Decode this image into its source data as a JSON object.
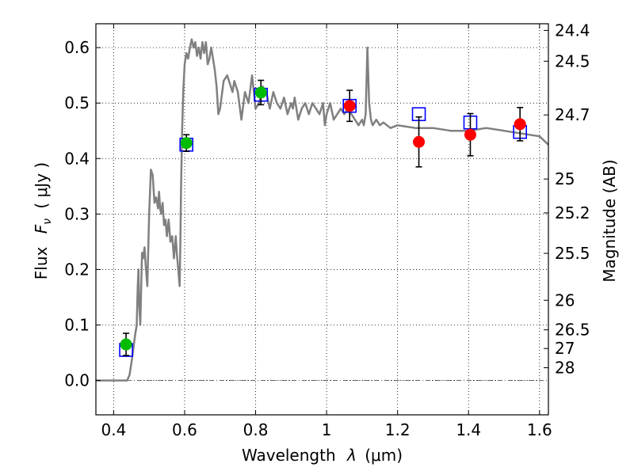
{
  "chart_data": {
    "type": "scatter",
    "xlabel": {
      "text": "Wavelength",
      "symbol": "λ",
      "unit": "(μm)"
    },
    "ylabel": {
      "text": "Flux",
      "symbol": "F",
      "subscript": "ν",
      "unit": "( μJy )"
    },
    "y2label": "Magnitude (AB)",
    "xlim": [
      0.35,
      1.625
    ],
    "ylim": [
      -0.062,
      0.643
    ],
    "grid": true,
    "x_ticks": [
      0.4,
      0.6,
      0.8,
      1.0,
      1.2,
      1.4,
      1.6
    ],
    "x_tick_labels": [
      "0.4",
      "0.6",
      "0.8",
      "1",
      "1.2",
      "1.4",
      "1.6"
    ],
    "y_ticks": [
      0.0,
      0.1,
      0.2,
      0.3,
      0.4,
      0.5,
      0.6
    ],
    "y_tick_labels": [
      "0.0",
      "0.1",
      "0.2",
      "0.3",
      "0.4",
      "0.5",
      "0.6"
    ],
    "y2_ticks": [
      {
        "label": "24.4",
        "mag": 24.4
      },
      {
        "label": "24.5",
        "mag": 24.5
      },
      {
        "label": "24.7",
        "mag": 24.7
      },
      {
        "label": "25",
        "mag": 25.0
      },
      {
        "label": "25.2",
        "mag": 25.2
      },
      {
        "label": "25.5",
        "mag": 25.5
      },
      {
        "label": "26",
        "mag": 26.0
      },
      {
        "label": "26.5",
        "mag": 26.5
      },
      {
        "label": "27",
        "mag": 27.0
      },
      {
        "label": "28",
        "mag": 28.0
      }
    ],
    "series": [
      {
        "kind": "model_spectrum",
        "color": "#808080",
        "x": [
          0.35,
          0.43,
          0.438,
          0.445,
          0.452,
          0.46,
          0.465,
          0.468,
          0.47,
          0.472,
          0.475,
          0.48,
          0.483,
          0.487,
          0.49,
          0.495,
          0.5,
          0.505,
          0.51,
          0.515,
          0.52,
          0.525,
          0.528,
          0.531,
          0.534,
          0.538,
          0.542,
          0.546,
          0.55,
          0.555,
          0.56,
          0.565,
          0.57,
          0.575,
          0.578,
          0.582,
          0.586,
          0.588,
          0.59,
          0.593,
          0.596,
          0.6,
          0.605,
          0.61,
          0.615,
          0.62,
          0.625,
          0.63,
          0.635,
          0.64,
          0.645,
          0.65,
          0.655,
          0.66,
          0.665,
          0.67,
          0.675,
          0.68,
          0.685,
          0.69,
          0.695,
          0.7,
          0.71,
          0.72,
          0.73,
          0.735,
          0.74,
          0.75,
          0.76,
          0.77,
          0.78,
          0.79,
          0.8,
          0.81,
          0.82,
          0.83,
          0.84,
          0.85,
          0.86,
          0.87,
          0.88,
          0.89,
          0.9,
          0.905,
          0.91,
          0.92,
          0.93,
          0.94,
          0.95,
          0.96,
          0.97,
          0.98,
          0.99,
          0.995,
          1.0,
          1.01,
          1.02,
          1.03,
          1.04,
          1.05,
          1.06,
          1.07,
          1.08,
          1.09,
          1.1,
          1.105,
          1.11,
          1.115,
          1.12,
          1.125,
          1.13,
          1.14,
          1.15,
          1.16,
          1.17,
          1.18,
          1.2,
          1.25,
          1.3,
          1.35,
          1.4,
          1.45,
          1.5,
          1.55,
          1.6,
          1.625
        ],
        "y": [
          0.0,
          0.0,
          0.0,
          0.01,
          0.04,
          0.08,
          0.1,
          0.17,
          0.2,
          0.14,
          0.1,
          0.23,
          0.22,
          0.24,
          0.21,
          0.17,
          0.3,
          0.38,
          0.37,
          0.32,
          0.33,
          0.31,
          0.34,
          0.31,
          0.3,
          0.32,
          0.28,
          0.29,
          0.26,
          0.29,
          0.25,
          0.26,
          0.22,
          0.26,
          0.23,
          0.2,
          0.17,
          0.25,
          0.35,
          0.45,
          0.52,
          0.57,
          0.59,
          0.58,
          0.6,
          0.615,
          0.6,
          0.61,
          0.585,
          0.6,
          0.58,
          0.61,
          0.59,
          0.61,
          0.57,
          0.58,
          0.6,
          0.58,
          0.56,
          0.53,
          0.48,
          0.49,
          0.54,
          0.55,
          0.53,
          0.52,
          0.54,
          0.52,
          0.47,
          0.52,
          0.5,
          0.55,
          0.49,
          0.5,
          0.53,
          0.52,
          0.49,
          0.52,
          0.5,
          0.49,
          0.51,
          0.48,
          0.5,
          0.49,
          0.51,
          0.47,
          0.49,
          0.5,
          0.48,
          0.5,
          0.49,
          0.48,
          0.5,
          0.46,
          0.48,
          0.5,
          0.47,
          0.48,
          0.49,
          0.48,
          0.49,
          0.48,
          0.47,
          0.46,
          0.47,
          0.46,
          0.48,
          0.6,
          0.5,
          0.47,
          0.46,
          0.47,
          0.46,
          0.465,
          0.46,
          0.455,
          0.46,
          0.455,
          0.455,
          0.45,
          0.45,
          0.455,
          0.45,
          0.445,
          0.44,
          0.425
        ]
      },
      {
        "kind": "model_photometry",
        "marker": "open-square",
        "color": "#0000ff",
        "x": [
          0.435,
          0.605,
          0.815,
          1.065,
          1.26,
          1.405,
          1.545
        ],
        "y": [
          0.055,
          0.425,
          0.515,
          0.495,
          0.48,
          0.465,
          0.448
        ]
      },
      {
        "kind": "observed",
        "marker": "circle",
        "color": "#00bb00",
        "x": [
          0.435,
          0.605,
          0.815
        ],
        "y": [
          0.065,
          0.428,
          0.519
        ],
        "yerr": [
          0.02,
          0.015,
          0.022
        ]
      },
      {
        "kind": "observed",
        "marker": "circle",
        "color": "#ff0000",
        "x": [
          1.065,
          1.26,
          1.405,
          1.545
        ],
        "y": [
          0.495,
          0.43,
          0.443,
          0.462
        ],
        "yerr": [
          0.028,
          0.045,
          0.038,
          0.03
        ]
      }
    ]
  }
}
